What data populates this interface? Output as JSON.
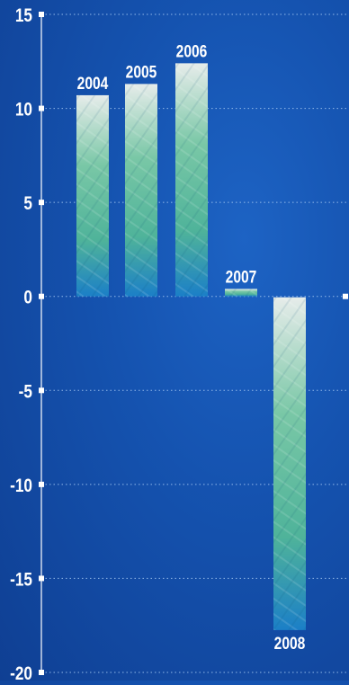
{
  "chart_data": {
    "type": "bar",
    "categories": [
      "2004",
      "2005",
      "2006",
      "2007",
      "2008"
    ],
    "values": [
      10.7,
      11.3,
      12.4,
      0.4,
      -17.7
    ],
    "yticks": [
      15,
      10,
      5,
      0,
      -5,
      -10,
      -15,
      -20
    ],
    "ylim": [
      -20,
      15
    ],
    "grid": true,
    "title": "",
    "xlabel": "",
    "ylabel": "",
    "colors": {
      "bar_top": "#e6ecea",
      "bar_mid": "#79c7a6",
      "bar_bottom": "#1b7fc7",
      "text": "#ffffff",
      "grid": "#9ec3ee"
    }
  }
}
